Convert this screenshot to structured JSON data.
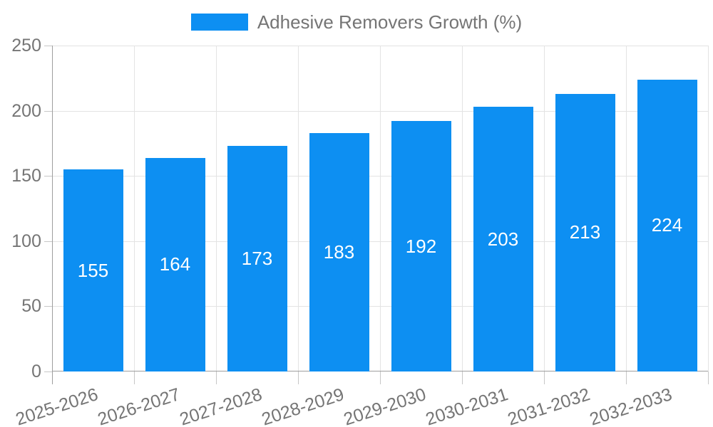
{
  "legend": {
    "label": "Adhesive Removers Growth (%)"
  },
  "chart_data": {
    "type": "bar",
    "title": "",
    "legend_label": "Adhesive Removers Growth (%)",
    "legend_position": "top-center",
    "categories": [
      "2025-2026",
      "2026-2027",
      "2027-2028",
      "2028-2029",
      "2029-2030",
      "2030-2031",
      "2031-2032",
      "2032-2033"
    ],
    "values": [
      155,
      164,
      173,
      183,
      192,
      203,
      213,
      224
    ],
    "xlabel": "",
    "ylabel": "",
    "ylim": [
      0,
      250
    ],
    "yticks": [
      0,
      50,
      100,
      150,
      200,
      250
    ],
    "grid": true,
    "value_labels": "inside-center",
    "colors": {
      "bar": "#0d8ff2",
      "value_label": "#ffffff",
      "axis_text": "#757575",
      "gridline": "#e3e3e3",
      "axis_line": "#9e9e9e",
      "tick": "#c7c7c7"
    }
  }
}
